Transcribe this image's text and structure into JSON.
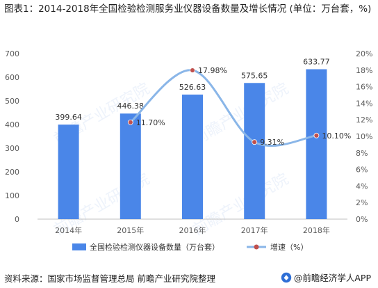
{
  "title": "图表1：2014-2018年全国检验检测服务业仪器设备数量及增长情况 (单位：万台套，%)",
  "source": "资料来源：国家市场监督管理总局 前瞻产业研究院整理",
  "credit": "@前瞻经济学人APP",
  "watermark": "前瞻产业研究院",
  "colors": {
    "bar": "#4a86e8",
    "line": "#8ab6e8",
    "marker": "#c0504d"
  },
  "chart_data": {
    "type": "bar",
    "categories": [
      "2014年",
      "2015年",
      "2016年",
      "2017年",
      "2018年"
    ],
    "series": [
      {
        "name": "全国检验检测仪器设备数量（万台套）",
        "type": "bar",
        "axis": "left",
        "values": [
          399.64,
          446.38,
          526.63,
          575.65,
          633.77
        ],
        "labels": [
          "399.64",
          "446.38",
          "526.63",
          "575.65",
          "633.77"
        ]
      },
      {
        "name": "增速（%）",
        "type": "line",
        "axis": "right",
        "values": [
          null,
          11.7,
          17.98,
          9.31,
          10.1
        ],
        "labels": [
          "",
          "11.70%",
          "17.98%",
          "9.31%",
          "10.10%"
        ]
      }
    ],
    "y_left": {
      "min": 0,
      "max": 700,
      "ticks": [
        "0",
        "100",
        "200",
        "300",
        "400",
        "500",
        "600",
        "700"
      ]
    },
    "y_right": {
      "min": 0,
      "max": 20,
      "ticks": [
        "0%",
        "2%",
        "4%",
        "6%",
        "8%",
        "10%",
        "12%",
        "14%",
        "16%",
        "18%",
        "20%"
      ]
    },
    "grid": false,
    "legend": "bottom"
  }
}
